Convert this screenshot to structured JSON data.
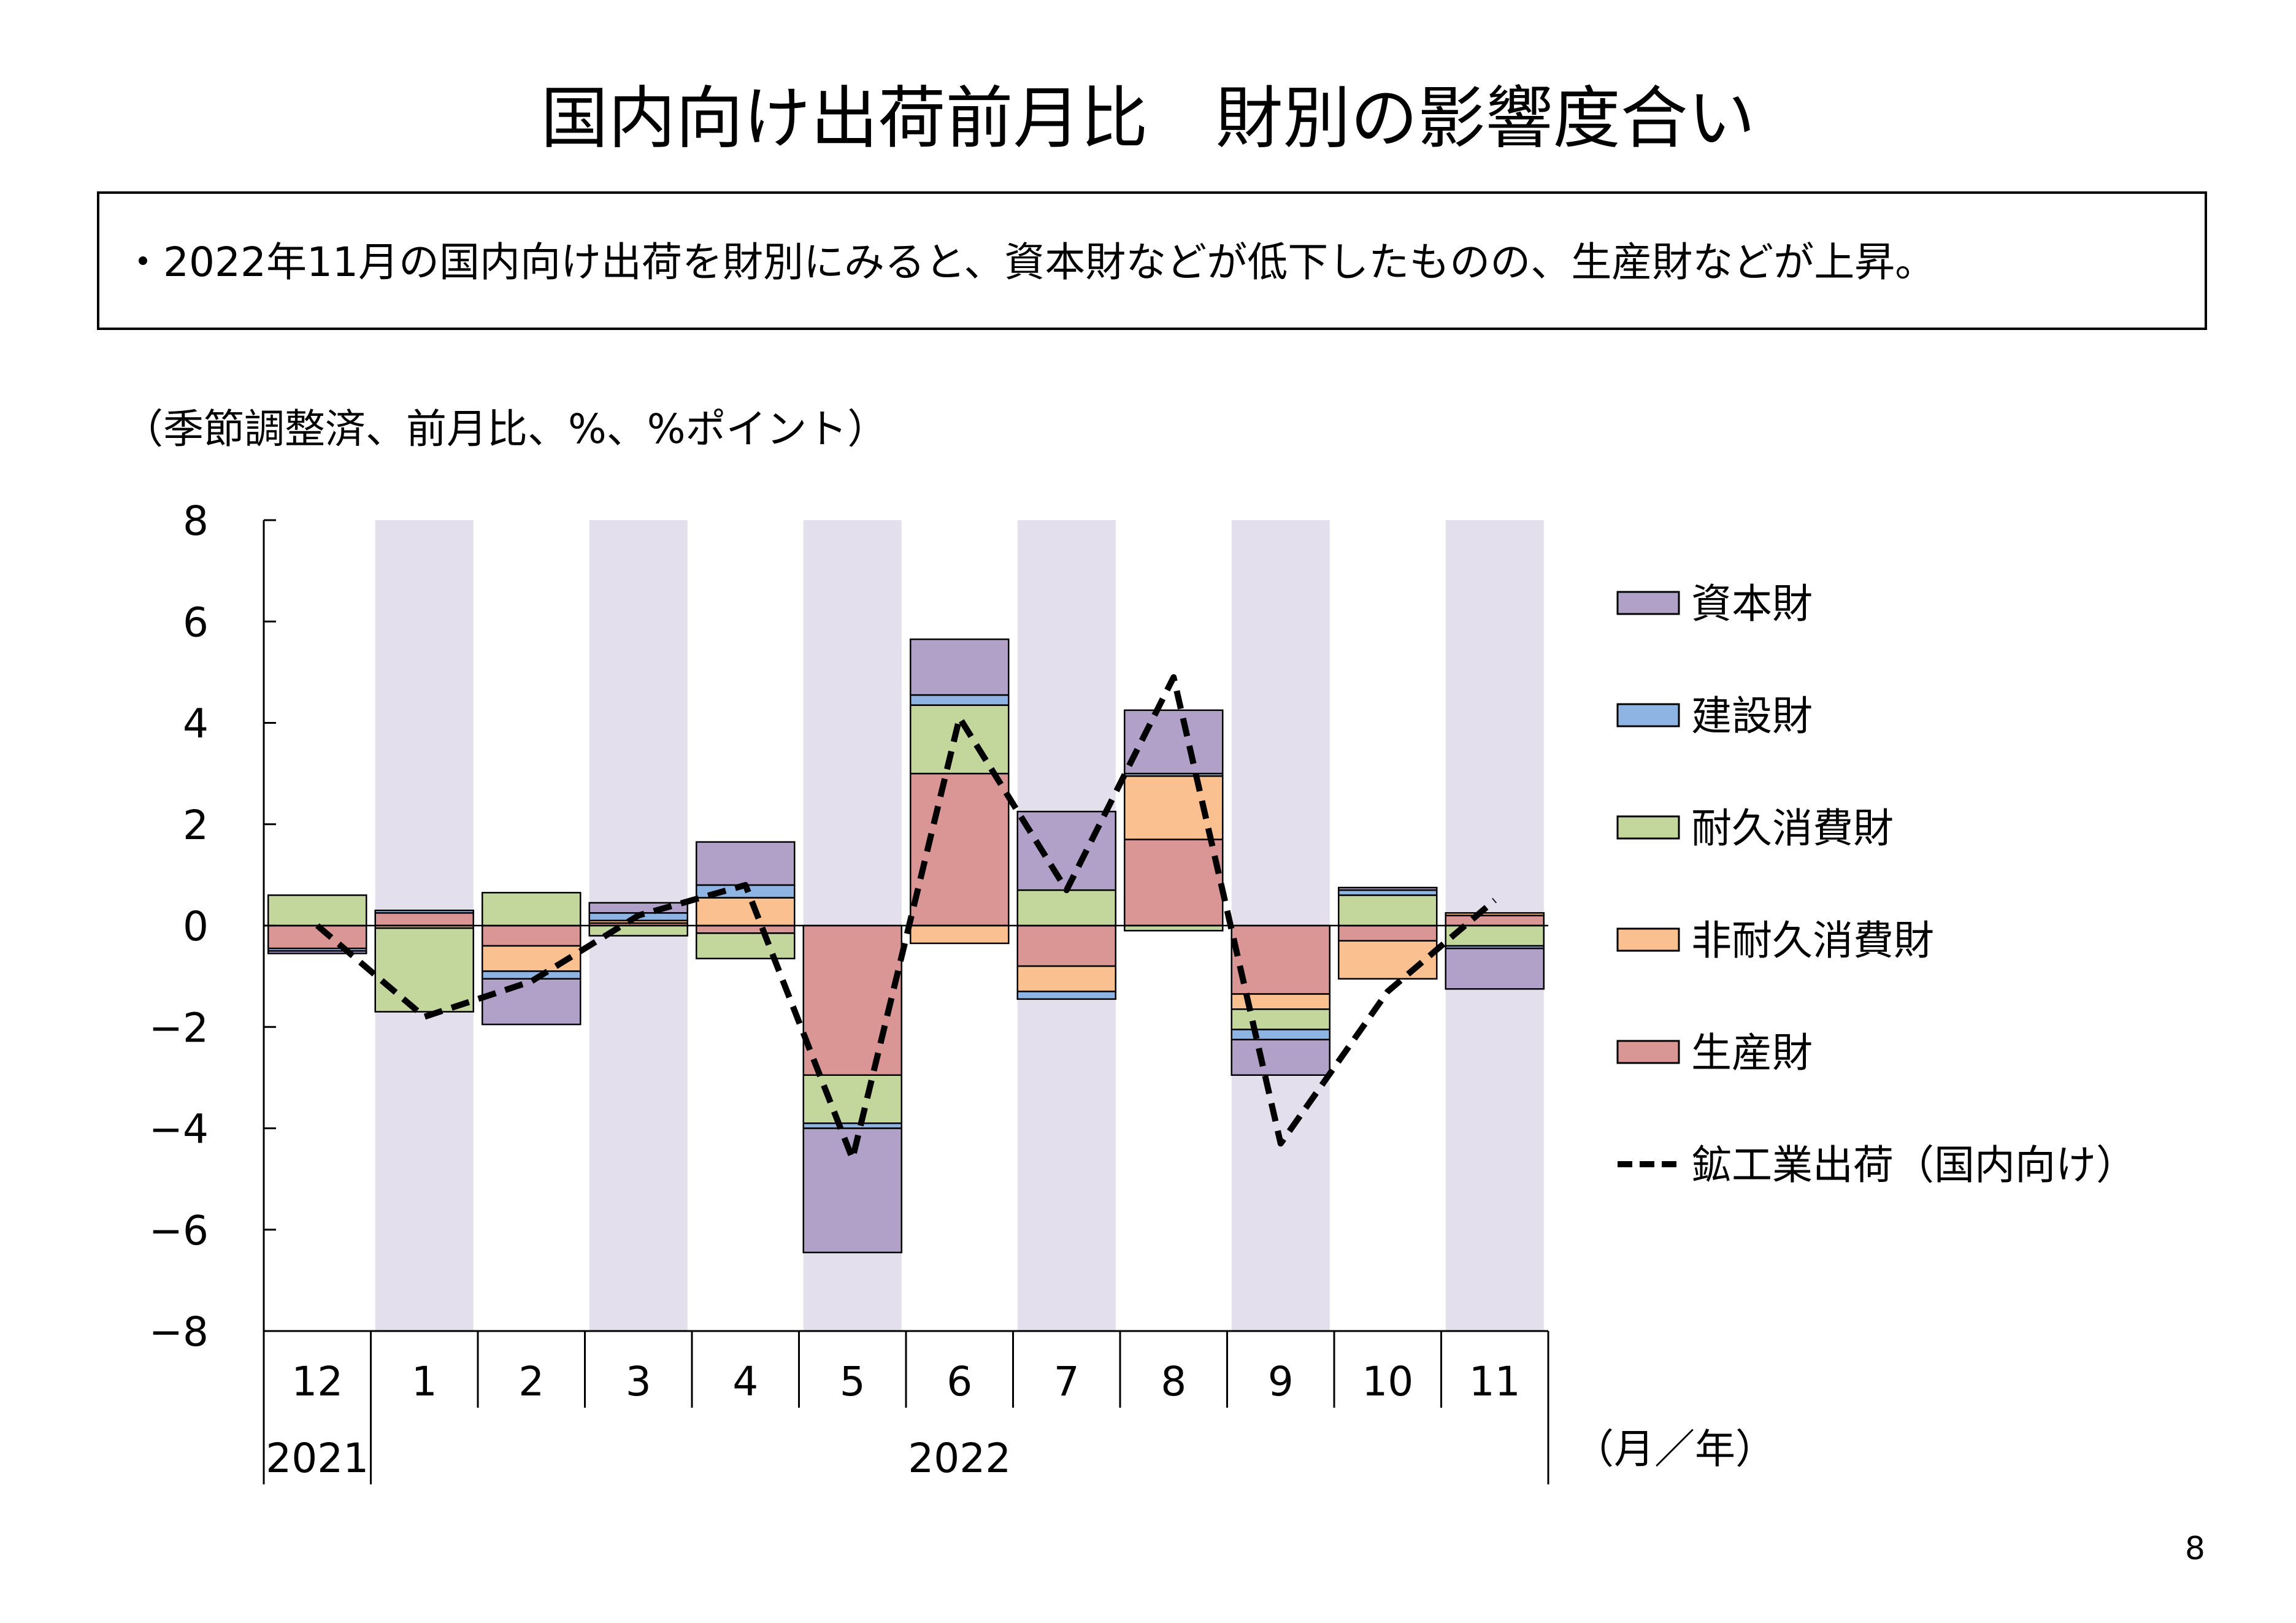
{
  "page": {
    "title": "国内向け出荷前月比　財別の影響度合い",
    "summary": "・2022年11月の国内向け出荷を財別にみると、資本財などが低下したものの、生産財などが上昇。",
    "unit_note": "（季節調整済、前月比、%、%ポイント）",
    "page_number": "8"
  },
  "colors": {
    "capital_goods": "#b1a0c7",
    "construction_goods": "#8eb4e3",
    "durable_consumer_goods": "#c3d69b",
    "nondurable_consumer_goods": "#fac090",
    "producer_goods": "#d99694",
    "line": "#000000",
    "shade": "#e4dfec"
  },
  "chart_data": {
    "type": "bar",
    "stacked": true,
    "categories": [
      "12",
      "1",
      "2",
      "3",
      "4",
      "5",
      "6",
      "7",
      "8",
      "9",
      "10",
      "11"
    ],
    "year_labels": [
      {
        "label": "2021",
        "months": [
          "12"
        ]
      },
      {
        "label": "2022",
        "months": [
          "1",
          "2",
          "3",
          "4",
          "5",
          "6",
          "7",
          "8",
          "9",
          "10",
          "11"
        ]
      }
    ],
    "xlabel": "（月／年）",
    "ylabel": "",
    "ylim": [
      -8,
      8
    ],
    "yticks": [
      8,
      6,
      4,
      2,
      0,
      -2,
      -4,
      -6,
      -8
    ],
    "shaded_categories": [
      "1",
      "3",
      "5",
      "7",
      "9",
      "11"
    ],
    "legend_position": "right",
    "series": [
      {
        "name": "生産財",
        "color_key": "producer_goods",
        "values": [
          -0.45,
          0.25,
          -0.4,
          0.05,
          -0.15,
          -2.95,
          3.0,
          -0.8,
          1.7,
          -1.35,
          -0.3,
          0.2
        ]
      },
      {
        "name": "非耐久消費財",
        "color_key": "nondurable_consumer_goods",
        "values": [
          0.0,
          -0.05,
          -0.5,
          0.05,
          0.55,
          0.0,
          -0.35,
          -0.5,
          1.25,
          -0.3,
          -0.75,
          0.05
        ]
      },
      {
        "name": "耐久消費財",
        "color_key": "durable_consumer_goods",
        "values": [
          0.6,
          -1.65,
          0.65,
          -0.2,
          -0.5,
          -0.95,
          1.35,
          0.7,
          -0.1,
          -0.4,
          0.6,
          -0.4
        ]
      },
      {
        "name": "建設財",
        "color_key": "construction_goods",
        "values": [
          -0.05,
          0.05,
          -0.15,
          0.15,
          0.25,
          -0.1,
          0.2,
          -0.15,
          0.05,
          -0.2,
          0.1,
          -0.05
        ]
      },
      {
        "name": "資本財",
        "color_key": "capital_goods",
        "values": [
          -0.05,
          0.0,
          -0.9,
          0.2,
          0.85,
          -2.45,
          1.1,
          1.55,
          1.25,
          -0.7,
          0.05,
          -0.8
        ]
      }
    ],
    "line_series": {
      "name": "鉱工業出荷（国内向け）",
      "values": [
        0.0,
        -1.8,
        -1.1,
        0.2,
        0.8,
        -4.6,
        4.1,
        0.7,
        4.9,
        -4.3,
        -1.3,
        0.5
      ]
    },
    "legend_order": [
      "資本財",
      "建設財",
      "耐久消費財",
      "非耐久消費財",
      "生産財",
      "鉱工業出荷（国内向け）"
    ]
  }
}
